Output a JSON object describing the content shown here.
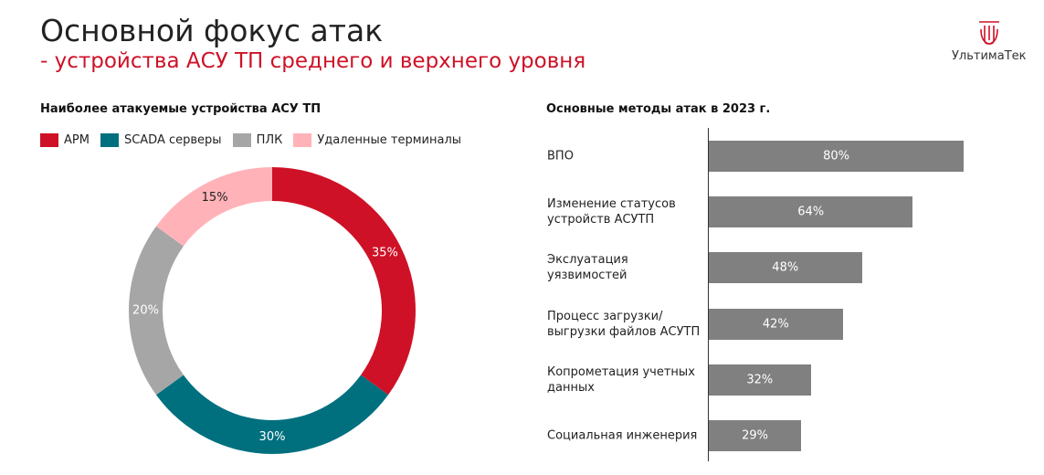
{
  "header": {
    "title": "Основной фокус атак",
    "subtitle": "- устройства АСУ ТП среднего и верхнего уровня",
    "logo": "УльтимаТек"
  },
  "chart_data": [
    {
      "type": "donut",
      "title": "Наиболее атакуемые устройства АСУ ТП",
      "categories": [
        "АРМ",
        "SCADA серверы",
        "ПЛК",
        "Удаленные терминалы"
      ],
      "values": [
        35,
        30,
        20,
        15
      ],
      "value_labels": [
        "35%",
        "30%",
        "20%",
        "15%"
      ],
      "colors": [
        "#ce1126",
        "#00707f",
        "#a6a6a6",
        "#ffb3b8"
      ],
      "legend": "top"
    },
    {
      "type": "hbar",
      "title": "Основные методы атак в 2023 г.",
      "categories": [
        "ВПО",
        "Изменение статусов\nустройств АСУТП",
        "Экслуатация\nуязвимостей",
        "Процесс загрузки/\nвыгрузки файлов АСУТП",
        "Копрометация учетных\nданных",
        "Социальная инженерия"
      ],
      "values": [
        80,
        64,
        48,
        42,
        32,
        29
      ],
      "value_labels": [
        "80%",
        "64%",
        "48%",
        "42%",
        "32%",
        "29%"
      ],
      "color": "#808080",
      "xlim": [
        0,
        100
      ]
    }
  ]
}
